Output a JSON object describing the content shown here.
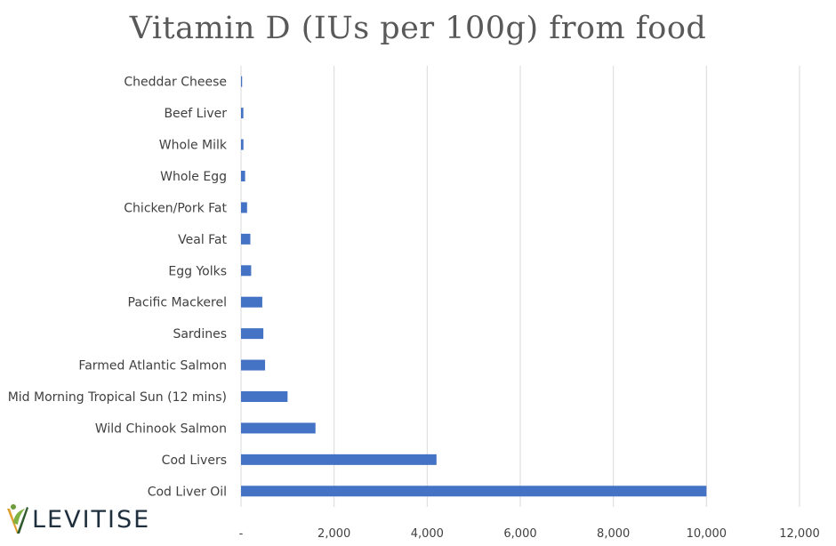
{
  "chart_data": {
    "type": "bar",
    "orientation": "horizontal",
    "title": "Vitamin D (IUs per 100g) from food",
    "categories": [
      "Cheddar Cheese",
      "Beef Liver",
      "Whole Milk",
      "Whole Egg",
      "Chicken/Pork Fat",
      "Veal Fat",
      "Egg Yolks",
      "Pacific Mackerel",
      "Sardines",
      "Farmed Atlantic Salmon",
      "Mid Morning Tropical Sun (12 mins)",
      "Wild Chinook Salmon",
      "Cod Livers",
      "Cod Liver Oil"
    ],
    "values": [
      24,
      50,
      52,
      88,
      130,
      200,
      218,
      457,
      480,
      517,
      1000,
      1600,
      4200,
      10000
    ],
    "xlim": [
      0,
      12000
    ],
    "x_ticks": [
      0,
      2000,
      4000,
      6000,
      8000,
      10000,
      12000
    ],
    "x_tick_labels": [
      "-",
      "2,000",
      "4,000",
      "6,000",
      "8,000",
      "10,000",
      "12,000"
    ],
    "bar_color": "#4472c4",
    "grid": "vertical",
    "legend": "none"
  },
  "logo": {
    "text": "LEVITISE"
  }
}
